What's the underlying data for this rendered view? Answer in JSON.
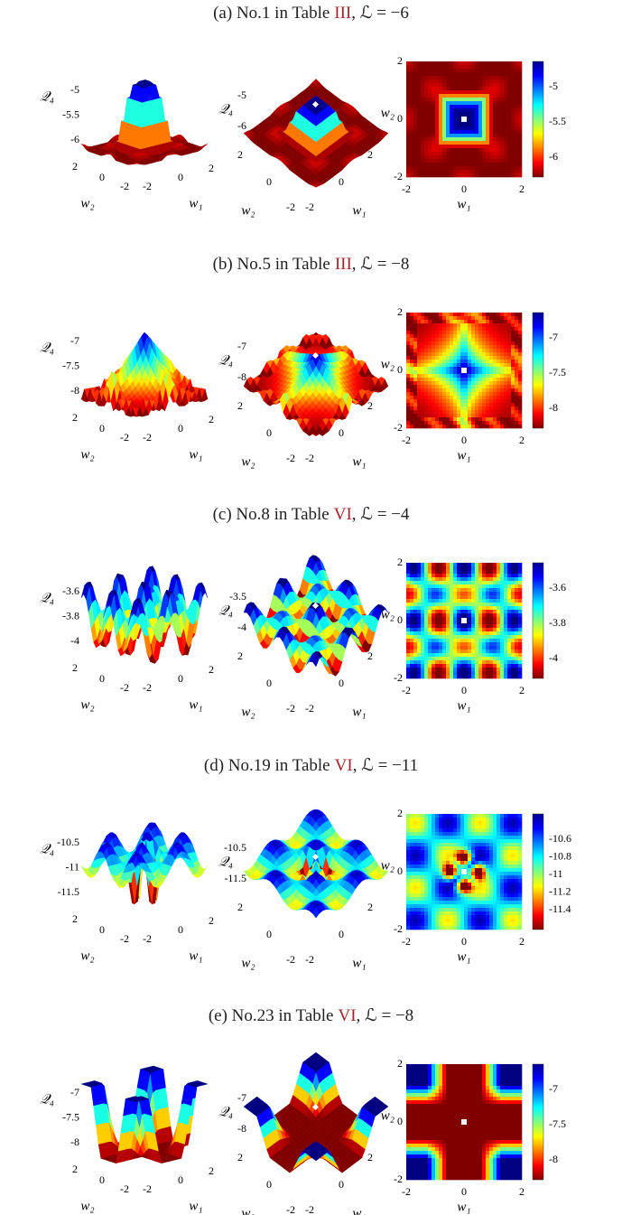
{
  "axis_ticks": [
    "-2",
    "0",
    "2"
  ],
  "z_label": "𝒬₄",
  "w1_label": "w₁",
  "w2_label": "w₂",
  "panels": [
    {
      "caption": {
        "prefix": "(a) No.1 in Table",
        "ref": "III",
        "suffix": ", ℒ = −6"
      },
      "left_zticks": [
        "-5",
        "-5.5",
        "-6"
      ],
      "middle_zticks": [
        "-5",
        "-6"
      ],
      "colorbar_ticks": [
        "-5",
        "-5.5",
        "-6"
      ]
    },
    {
      "caption": {
        "prefix": "(b) No.5 in Table",
        "ref": "III",
        "suffix": ", ℒ = −8"
      },
      "left_zticks": [
        "-7",
        "-7.5",
        "-8"
      ],
      "middle_zticks": [
        "-7",
        "-8"
      ],
      "colorbar_ticks": [
        "-7",
        "-7.5",
        "-8"
      ]
    },
    {
      "caption": {
        "prefix": "(c) No.8 in Table",
        "ref": "VI",
        "suffix": ", ℒ = −4"
      },
      "left_zticks": [
        "-3.6",
        "-3.8",
        "-4"
      ],
      "middle_zticks": [
        "-3.5",
        "-4"
      ],
      "colorbar_ticks": [
        "-3.6",
        "-3.8",
        "-4"
      ]
    },
    {
      "caption": {
        "prefix": "(d) No.19 in Table",
        "ref": "VI",
        "suffix": ", ℒ = −11"
      },
      "left_zticks": [
        "-10.5",
        "-11",
        "-11.5"
      ],
      "middle_zticks": [
        "-10.5",
        "-11.5"
      ],
      "colorbar_ticks": [
        "-10.6",
        "-10.8",
        "-11",
        "-11.2",
        "-11.4"
      ]
    },
    {
      "caption": {
        "prefix": "(e) No.23 in Table",
        "ref": "VI",
        "suffix": ", ℒ = −8"
      },
      "left_zticks": [
        "-7",
        "-7.5",
        "-8"
      ],
      "middle_zticks": [
        "-7",
        "-8"
      ],
      "colorbar_ticks": [
        "-7",
        "-7.5",
        "-8"
      ]
    }
  ]
}
